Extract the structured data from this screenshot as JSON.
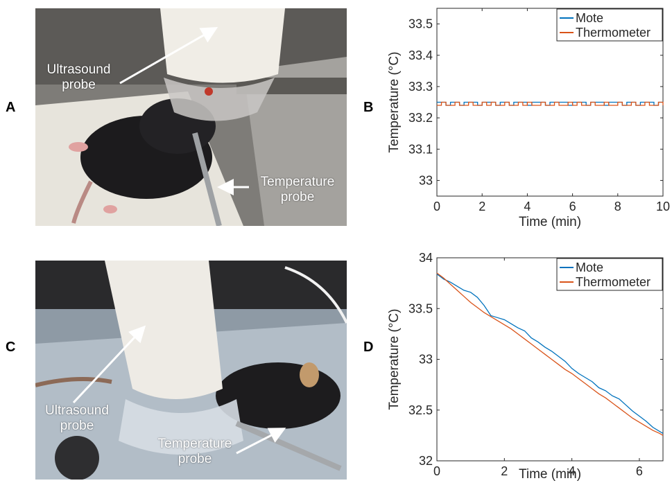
{
  "panels": {
    "a": {
      "letter": "A",
      "label_top": "Ultrasound\nprobe",
      "label_bottom": "Temperature\nprobe"
    },
    "b": {
      "letter": "B"
    },
    "c": {
      "letter": "C",
      "label_top": "Ultrasound\nprobe",
      "label_bottom": "Temperature\nprobe"
    },
    "d": {
      "letter": "D"
    }
  },
  "colors": {
    "mote": "#0072bd",
    "thermometer": "#d95319"
  },
  "chart_data": [
    {
      "type": "line",
      "panel": "B",
      "title": "",
      "xlabel": "Time (min)",
      "ylabel": "Temperature (°C)",
      "xlim": [
        0,
        10
      ],
      "ylim": [
        32.95,
        33.55
      ],
      "xticks": [
        "0",
        "2",
        "4",
        "6",
        "8",
        "10"
      ],
      "yticks": [
        "33",
        "33.1",
        "33.2",
        "33.3",
        "33.4",
        "33.5"
      ],
      "legend_position": "top-right",
      "grid": false,
      "series": [
        {
          "name": "Mote",
          "x": [
            0,
            0.2,
            0.4,
            0.6,
            0.8,
            1.0,
            1.2,
            1.4,
            1.6,
            1.8,
            2.0,
            2.2,
            2.4,
            2.6,
            2.8,
            3.0,
            3.2,
            3.4,
            3.6,
            3.8,
            4.0,
            4.2,
            4.4,
            4.6,
            4.8,
            5.0,
            5.2,
            5.4,
            5.6,
            5.8,
            6.0,
            6.2,
            6.4,
            6.6,
            6.8,
            7.0,
            7.2,
            7.4,
            7.6,
            7.8,
            8.0,
            8.2,
            8.4,
            8.6,
            8.8,
            9.0,
            9.2,
            9.4,
            9.6,
            9.8,
            10.0
          ],
          "values": [
            33.25,
            33.25,
            33.24,
            33.25,
            33.25,
            33.24,
            33.25,
            33.25,
            33.25,
            33.24,
            33.25,
            33.25,
            33.25,
            33.24,
            33.25,
            33.25,
            33.24,
            33.25,
            33.25,
            33.25,
            33.24,
            33.25,
            33.25,
            33.25,
            33.24,
            33.25,
            33.25,
            33.25,
            33.25,
            33.24,
            33.25,
            33.25,
            33.25,
            33.24,
            33.25,
            33.25,
            33.25,
            33.24,
            33.25,
            33.25,
            33.25,
            33.24,
            33.25,
            33.25,
            33.24,
            33.25,
            33.25,
            33.25,
            33.24,
            33.25,
            33.25
          ]
        },
        {
          "name": "Thermometer",
          "x": [
            0,
            0.2,
            0.4,
            0.6,
            0.8,
            1.0,
            1.2,
            1.4,
            1.6,
            1.8,
            2.0,
            2.2,
            2.4,
            2.6,
            2.8,
            3.0,
            3.2,
            3.4,
            3.6,
            3.8,
            4.0,
            4.2,
            4.4,
            4.6,
            4.8,
            5.0,
            5.2,
            5.4,
            5.6,
            5.8,
            6.0,
            6.2,
            6.4,
            6.6,
            6.8,
            7.0,
            7.2,
            7.4,
            7.6,
            7.8,
            8.0,
            8.2,
            8.4,
            8.6,
            8.8,
            9.0,
            9.2,
            9.4,
            9.6,
            9.8,
            10.0
          ],
          "values": [
            33.24,
            33.25,
            33.24,
            33.24,
            33.25,
            33.24,
            33.24,
            33.25,
            33.24,
            33.24,
            33.25,
            33.24,
            33.25,
            33.24,
            33.24,
            33.25,
            33.24,
            33.24,
            33.25,
            33.24,
            33.25,
            33.24,
            33.24,
            33.25,
            33.24,
            33.24,
            33.25,
            33.24,
            33.24,
            33.25,
            33.24,
            33.25,
            33.24,
            33.24,
            33.25,
            33.24,
            33.24,
            33.25,
            33.24,
            33.24,
            33.25,
            33.24,
            33.24,
            33.25,
            33.24,
            33.24,
            33.25,
            33.24,
            33.24,
            33.25,
            33.24
          ]
        }
      ]
    },
    {
      "type": "line",
      "panel": "D",
      "title": "",
      "xlabel": "Time (min)",
      "ylabel": "Temperature (°C)",
      "xlim": [
        0,
        6.7
      ],
      "ylim": [
        32,
        34
      ],
      "xticks": [
        "0",
        "2",
        "4",
        "6"
      ],
      "yticks": [
        "32",
        "32.5",
        "33",
        "33.5",
        "34"
      ],
      "legend_position": "top-right",
      "grid": false,
      "series": [
        {
          "name": "Mote",
          "x": [
            0,
            0.2,
            0.4,
            0.6,
            0.8,
            1.0,
            1.2,
            1.4,
            1.6,
            1.8,
            2.0,
            2.2,
            2.4,
            2.6,
            2.8,
            3.0,
            3.2,
            3.4,
            3.6,
            3.8,
            4.0,
            4.2,
            4.4,
            4.6,
            4.8,
            5.0,
            5.2,
            5.4,
            5.6,
            5.8,
            6.0,
            6.2,
            6.4,
            6.6,
            6.7
          ],
          "values": [
            33.84,
            33.79,
            33.76,
            33.72,
            33.68,
            33.66,
            33.61,
            33.53,
            33.43,
            33.41,
            33.39,
            33.35,
            33.31,
            33.28,
            33.21,
            33.17,
            33.12,
            33.08,
            33.03,
            32.98,
            32.91,
            32.86,
            32.82,
            32.78,
            32.72,
            32.69,
            32.64,
            32.61,
            32.55,
            32.49,
            32.44,
            32.39,
            32.33,
            32.29,
            32.27
          ]
        },
        {
          "name": "Thermometer",
          "x": [
            0,
            0.2,
            0.4,
            0.6,
            0.8,
            1.0,
            1.2,
            1.4,
            1.6,
            1.8,
            2.0,
            2.2,
            2.4,
            2.6,
            2.8,
            3.0,
            3.2,
            3.4,
            3.6,
            3.8,
            4.0,
            4.2,
            4.4,
            4.6,
            4.8,
            5.0,
            5.2,
            5.4,
            5.6,
            5.8,
            6.0,
            6.2,
            6.4,
            6.6,
            6.7
          ],
          "values": [
            33.85,
            33.8,
            33.74,
            33.68,
            33.62,
            33.56,
            33.51,
            33.46,
            33.42,
            33.38,
            33.34,
            33.3,
            33.25,
            33.2,
            33.15,
            33.1,
            33.05,
            33.0,
            32.95,
            32.9,
            32.86,
            32.81,
            32.76,
            32.71,
            32.66,
            32.62,
            32.57,
            32.52,
            32.47,
            32.42,
            32.38,
            32.34,
            32.3,
            32.27,
            32.25
          ]
        }
      ]
    }
  ]
}
